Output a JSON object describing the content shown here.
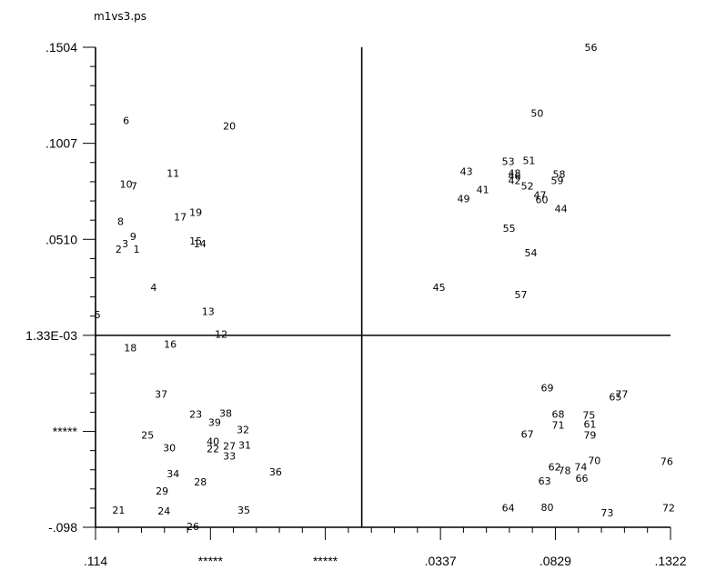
{
  "chart_data": {
    "type": "scatter",
    "title": "m1vs3.ps",
    "xlabel": "",
    "ylabel": "",
    "xlim": [
      -0.114,
      0.1322
    ],
    "ylim": [
      -0.098,
      0.1504
    ],
    "x_tick_values": [
      -0.114,
      -0.0648,
      -0.0156,
      0.0337,
      0.0829,
      0.1322
    ],
    "x_tick_labels": [
      ".114",
      "*****",
      "*****",
      ".0337",
      ".0829",
      ".1322"
    ],
    "y_tick_values": [
      0.1504,
      0.1007,
      0.051,
      0.00133,
      -0.0484,
      -0.098
    ],
    "y_tick_labels": [
      ".1504",
      ".1007",
      ".0510",
      "1.33E-03",
      "*****",
      "-.098"
    ],
    "reference_lines": {
      "x": 0.0,
      "y": 0.00133
    },
    "grid": false,
    "legend": "none",
    "points": [
      {
        "label": "1",
        "x": -0.0964,
        "y": 0.0459
      },
      {
        "label": "2",
        "x": -0.1041,
        "y": 0.0459
      },
      {
        "label": "3",
        "x": -0.1013,
        "y": 0.0487
      },
      {
        "label": "4",
        "x": -0.0891,
        "y": 0.0263
      },
      {
        "label": "5",
        "x": -0.1131,
        "y": 0.0122
      },
      {
        "label": "6",
        "x": -0.1009,
        "y": 0.1125
      },
      {
        "label": "7",
        "x": -0.0975,
        "y": 0.0787
      },
      {
        "label": "8",
        "x": -0.1033,
        "y": 0.0604
      },
      {
        "label": "9",
        "x": -0.0979,
        "y": 0.0525
      },
      {
        "label": "10",
        "x": -0.1009,
        "y": 0.0796
      },
      {
        "label": "11",
        "x": -0.0808,
        "y": 0.0853
      },
      {
        "label": "12",
        "x": -0.0602,
        "y": 0.0019
      },
      {
        "label": "13",
        "x": -0.0658,
        "y": 0.0137
      },
      {
        "label": "14",
        "x": -0.0693,
        "y": 0.0487
      },
      {
        "label": "15",
        "x": -0.0711,
        "y": 0.0501
      },
      {
        "label": "16",
        "x": -0.082,
        "y": -0.0032
      },
      {
        "label": "17",
        "x": -0.0777,
        "y": 0.0627
      },
      {
        "label": "18",
        "x": -0.0991,
        "y": -0.0051
      },
      {
        "label": "19",
        "x": -0.0711,
        "y": 0.0651
      },
      {
        "label": "20",
        "x": -0.0567,
        "y": 0.1097
      },
      {
        "label": "21",
        "x": -0.1041,
        "y": -0.089
      },
      {
        "label": "22",
        "x": -0.0637,
        "y": -0.0573
      },
      {
        "label": "23",
        "x": -0.0711,
        "y": -0.0394
      },
      {
        "label": "24",
        "x": -0.0847,
        "y": -0.0895
      },
      {
        "label": "25",
        "x": -0.0917,
        "y": -0.0503
      },
      {
        "label": "26",
        "x": -0.0723,
        "y": -0.0975
      },
      {
        "label": "27",
        "x": -0.0567,
        "y": -0.0559
      },
      {
        "label": "28",
        "x": -0.0691,
        "y": -0.0744
      },
      {
        "label": "29",
        "x": -0.0855,
        "y": -0.0791
      },
      {
        "label": "30",
        "x": -0.0824,
        "y": -0.0569
      },
      {
        "label": "31",
        "x": -0.0501,
        "y": -0.0555
      },
      {
        "label": "32",
        "x": -0.0509,
        "y": -0.0475
      },
      {
        "label": "33",
        "x": -0.0567,
        "y": -0.0611
      },
      {
        "label": "34",
        "x": -0.0808,
        "y": -0.0702
      },
      {
        "label": "35",
        "x": -0.0505,
        "y": -0.089
      },
      {
        "label": "36",
        "x": -0.0369,
        "y": -0.0692
      },
      {
        "label": "37",
        "x": -0.0859,
        "y": -0.0291
      },
      {
        "label": "38",
        "x": -0.0583,
        "y": -0.0389
      },
      {
        "label": "39",
        "x": -0.063,
        "y": -0.0437
      },
      {
        "label": "40",
        "x": -0.0637,
        "y": -0.0536
      },
      {
        "label": "41",
        "x": 0.0518,
        "y": 0.0768
      },
      {
        "label": "42",
        "x": 0.0654,
        "y": 0.0815
      },
      {
        "label": "43",
        "x": 0.0448,
        "y": 0.0862
      },
      {
        "label": "44",
        "x": 0.0853,
        "y": 0.067
      },
      {
        "label": "45",
        "x": 0.0331,
        "y": 0.0263
      },
      {
        "label": "46",
        "x": 0.0654,
        "y": 0.0839
      },
      {
        "label": "47",
        "x": 0.0763,
        "y": 0.074
      },
      {
        "label": "48",
        "x": 0.0654,
        "y": 0.0853
      },
      {
        "label": "49",
        "x": 0.0436,
        "y": 0.0721
      },
      {
        "label": "50",
        "x": 0.0751,
        "y": 0.1163
      },
      {
        "label": "51",
        "x": 0.0716,
        "y": 0.0919
      },
      {
        "label": "52",
        "x": 0.0709,
        "y": 0.0787
      },
      {
        "label": "53",
        "x": 0.0627,
        "y": 0.0914
      },
      {
        "label": "54",
        "x": 0.0724,
        "y": 0.044
      },
      {
        "label": "55",
        "x": 0.0631,
        "y": 0.0567
      },
      {
        "label": "56",
        "x": 0.0981,
        "y": 0.1504
      },
      {
        "label": "57",
        "x": 0.0681,
        "y": 0.0225
      },
      {
        "label": "58",
        "x": 0.0845,
        "y": 0.0848
      },
      {
        "label": "59",
        "x": 0.0837,
        "y": 0.0815
      },
      {
        "label": "60",
        "x": 0.0771,
        "y": 0.0716
      },
      {
        "label": "61",
        "x": 0.0977,
        "y": -0.0446
      },
      {
        "label": "62",
        "x": 0.0826,
        "y": -0.0668
      },
      {
        "label": "63",
        "x": 0.0783,
        "y": -0.0739
      },
      {
        "label": "64",
        "x": 0.0627,
        "y": -0.088
      },
      {
        "label": "65",
        "x": 0.1086,
        "y": -0.0305
      },
      {
        "label": "66",
        "x": 0.0942,
        "y": -0.0725
      },
      {
        "label": "67",
        "x": 0.0709,
        "y": -0.0498
      },
      {
        "label": "68",
        "x": 0.0841,
        "y": -0.0394
      },
      {
        "label": "69",
        "x": 0.0794,
        "y": -0.0258
      },
      {
        "label": "70",
        "x": 0.0996,
        "y": -0.0635
      },
      {
        "label": "71",
        "x": 0.0841,
        "y": -0.0451
      },
      {
        "label": "72",
        "x": 0.1314,
        "y": -0.088
      },
      {
        "label": "73",
        "x": 0.1051,
        "y": -0.0904
      },
      {
        "label": "74",
        "x": 0.0938,
        "y": -0.0668
      },
      {
        "label": "75",
        "x": 0.0973,
        "y": -0.0399
      },
      {
        "label": "76",
        "x": 0.1306,
        "y": -0.064
      },
      {
        "label": "77",
        "x": 0.1113,
        "y": -0.0291
      },
      {
        "label": "78",
        "x": 0.0868,
        "y": -0.0687
      },
      {
        "label": "79",
        "x": 0.0977,
        "y": -0.0503
      },
      {
        "label": "80",
        "x": 0.0794,
        "y": -0.0876
      }
    ]
  }
}
